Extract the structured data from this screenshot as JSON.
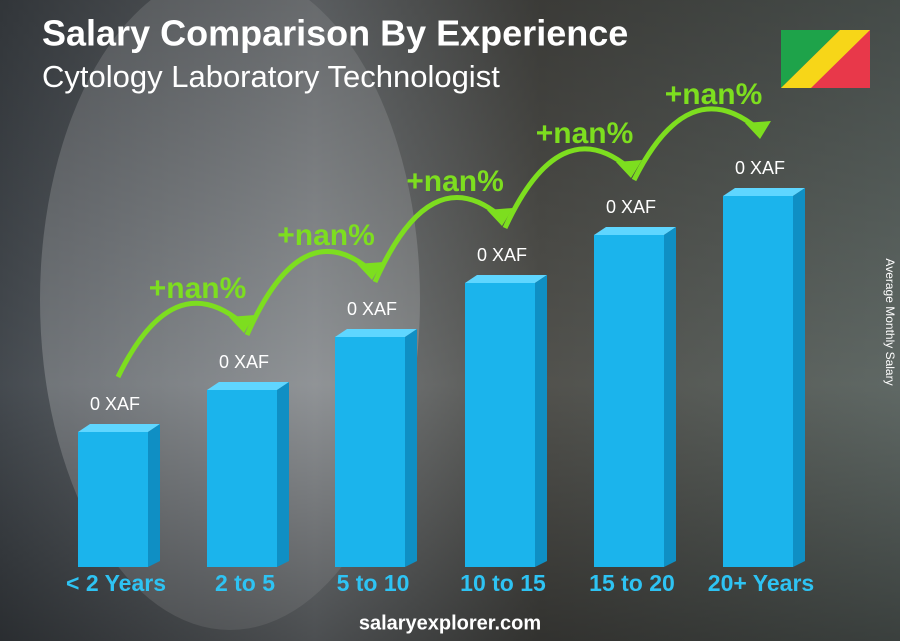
{
  "header": {
    "title": "Salary Comparison By Experience",
    "subtitle": "Cytology Laboratory Technologist"
  },
  "columns": [
    {
      "label": "< 2 Years",
      "value_label": "0 XAF"
    },
    {
      "label": "2 to 5",
      "value_label": "0 XAF"
    },
    {
      "label": "5 to 10",
      "value_label": "0 XAF"
    },
    {
      "label": "10 to 15",
      "value_label": "0 XAF"
    },
    {
      "label": "15 to 20",
      "value_label": "0 XAF"
    },
    {
      "label": "20+ Years",
      "value_label": "0 XAF"
    }
  ],
  "changes": [
    "+nan%",
    "+nan%",
    "+nan%",
    "+nan%",
    "+nan%"
  ],
  "axis_label": "Average Monthly Salary",
  "footer": "salaryexplorer.com"
}
